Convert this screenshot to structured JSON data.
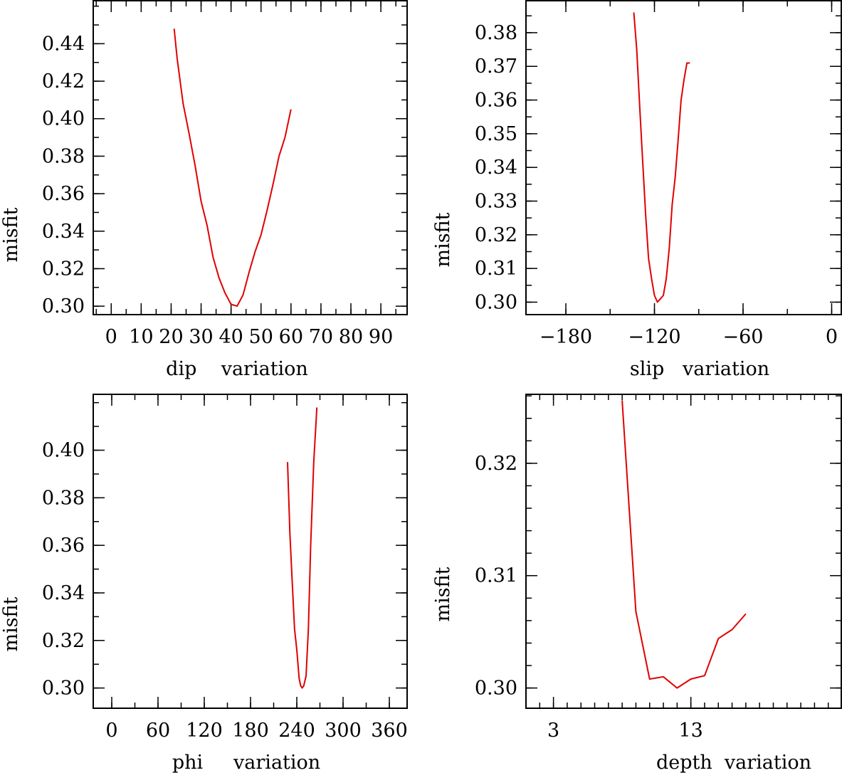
{
  "chart_data": [
    {
      "type": "line",
      "xlabel": "dip    variation",
      "ylabel": "misfit",
      "xlim": [
        -6,
        99
      ],
      "ylim": [
        0.2955,
        0.4633
      ],
      "xticks": [
        0,
        10,
        20,
        30,
        40,
        50,
        60,
        70,
        80,
        90
      ],
      "xtick_labels": [
        "0",
        "10",
        "20",
        "30",
        "40",
        "50",
        "60",
        "70",
        "80",
        "90"
      ],
      "xminor": 5,
      "yticks": [
        0.3,
        0.32,
        0.34,
        0.36,
        0.38,
        0.4,
        0.42,
        0.44
      ],
      "ytick_labels": [
        "0.30",
        "0.32",
        "0.34",
        "0.36",
        "0.38",
        "0.40",
        "0.42",
        "0.44"
      ],
      "yminor": 0.01,
      "series": [
        {
          "color": "#e00000",
          "x": [
            21,
            22,
            24,
            26,
            28,
            30,
            32,
            34,
            36,
            38,
            40,
            42,
            44,
            46,
            48,
            50,
            52,
            54,
            56,
            58,
            60
          ],
          "y": [
            0.448,
            0.432,
            0.408,
            0.392,
            0.375,
            0.356,
            0.343,
            0.326,
            0.315,
            0.307,
            0.301,
            0.3,
            0.306,
            0.318,
            0.329,
            0.338,
            0.351,
            0.365,
            0.38,
            0.39,
            0.405
          ]
        }
      ]
    },
    {
      "type": "line",
      "xlabel": "slip   variation",
      "ylabel": "misfit",
      "xlim": [
        -207,
        7
      ],
      "ylim": [
        0.2963,
        0.3897
      ],
      "xticks": [
        -180,
        -120,
        -60,
        0
      ],
      "xtick_labels": [
        "−180",
        "−120",
        "−60",
        "0"
      ],
      "xminor": 30,
      "yticks": [
        0.3,
        0.31,
        0.32,
        0.33,
        0.34,
        0.35,
        0.36,
        0.37,
        0.38
      ],
      "ytick_labels": [
        "0.30",
        "0.31",
        "0.32",
        "0.33",
        "0.34",
        "0.35",
        "0.36",
        "0.37",
        "0.38"
      ],
      "yminor": 0.005,
      "series": [
        {
          "color": "#e00000",
          "x": [
            -134,
            -132,
            -130,
            -128,
            -126,
            -124,
            -122,
            -120,
            -118,
            -116,
            -114,
            -112,
            -110,
            -108,
            -106,
            -104,
            -102,
            -100,
            -98,
            -96
          ],
          "y": [
            0.386,
            0.375,
            0.358,
            0.342,
            0.326,
            0.313,
            0.307,
            0.302,
            0.3,
            0.301,
            0.302,
            0.307,
            0.316,
            0.329,
            0.337,
            0.348,
            0.36,
            0.366,
            0.371,
            0.371
          ]
        }
      ]
    },
    {
      "type": "line",
      "xlabel": "phi     variation",
      "ylabel": "misfit",
      "xlim": [
        -24,
        384
      ],
      "ylim": [
        0.2915,
        0.4238
      ],
      "xticks": [
        0,
        60,
        120,
        180,
        240,
        300,
        360
      ],
      "xtick_labels": [
        "0",
        "60",
        "120",
        "180",
        "240",
        "300",
        "360"
      ],
      "xminor": 30,
      "yticks": [
        0.3,
        0.32,
        0.34,
        0.36,
        0.38,
        0.4
      ],
      "ytick_labels": [
        "0.30",
        "0.32",
        "0.34",
        "0.36",
        "0.38",
        "0.40"
      ],
      "yminor": 0.01,
      "series": [
        {
          "color": "#e00000",
          "x": [
            228,
            231,
            234,
            237,
            240,
            243,
            245,
            247,
            249,
            252,
            255,
            258,
            262,
            266
          ],
          "y": [
            0.395,
            0.365,
            0.345,
            0.325,
            0.316,
            0.304,
            0.301,
            0.3,
            0.301,
            0.305,
            0.325,
            0.36,
            0.395,
            0.418
          ]
        }
      ]
    },
    {
      "type": "line",
      "xlabel": "depth  variation",
      "ylabel": "misfit",
      "xlim": [
        1,
        24
      ],
      "ylim": [
        0.2982,
        0.3262
      ],
      "xticks": [
        3,
        13
      ],
      "xtick_labels": [
        "3",
        "13"
      ],
      "xminor": 1,
      "yticks": [
        0.3,
        0.31,
        0.32
      ],
      "ytick_labels": [
        "0.30",
        "0.31",
        "0.32"
      ],
      "yminor": 0.002,
      "series": [
        {
          "color": "#e00000",
          "x": [
            8,
            9,
            10,
            11,
            12,
            13,
            14,
            15,
            16,
            17
          ],
          "y": [
            0.3256,
            0.3068,
            0.3008,
            0.301,
            0.3,
            0.3008,
            0.3011,
            0.3044,
            0.3052,
            0.3066
          ]
        }
      ]
    }
  ]
}
